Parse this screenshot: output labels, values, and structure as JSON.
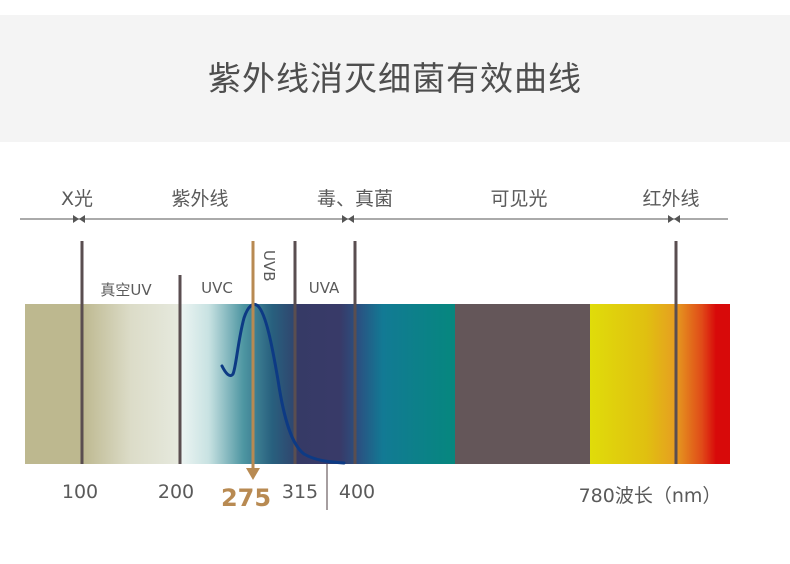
{
  "title": "紫外线消灭细菌有效曲线",
  "categories": [
    "X光",
    "紫外线",
    "毒、真菌",
    "可见光",
    "红外线"
  ],
  "sub_bands": {
    "vacuum_uv": "真空UV",
    "uvc": "UVC",
    "uvb": "UVB",
    "uva": "UVA"
  },
  "wavelength_labels": {
    "w100": "100",
    "w200": "200",
    "w275": "275",
    "w315": "315",
    "w400": "400",
    "w780": "780波长（nm）"
  },
  "colors": {
    "highlight": "#b88a52",
    "curve": "#0d3a84",
    "divider": "#5a4e50",
    "header_bg": "#f4f4f4"
  }
}
